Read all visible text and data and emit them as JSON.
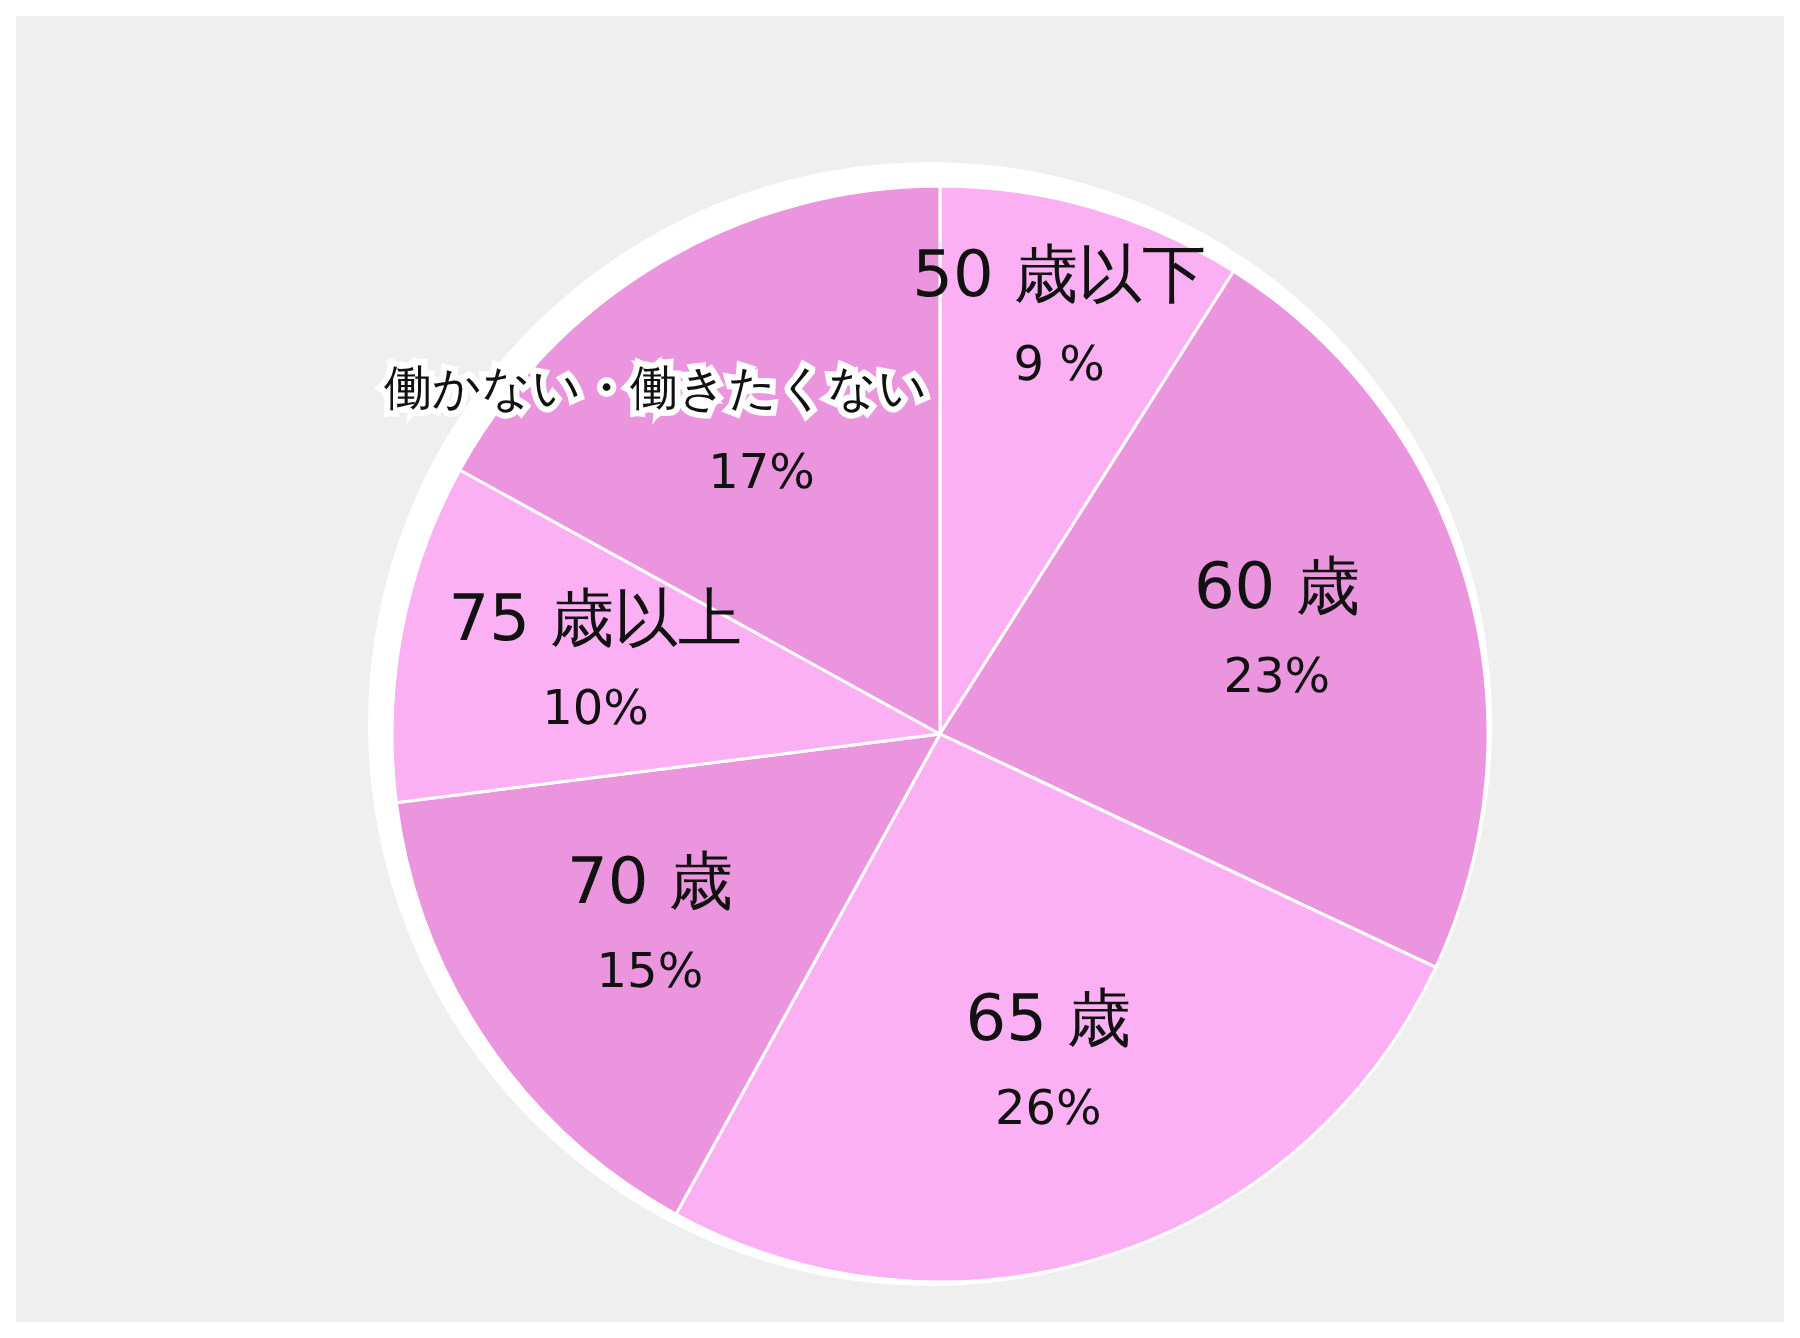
{
  "chart_data": {
    "type": "pie",
    "categories": [
      "50 歳以下",
      "60 歳",
      "65 歳",
      "70 歳",
      "75 歳以上",
      "働かない・働きたくない"
    ],
    "values": [
      9,
      23,
      26,
      15,
      10,
      17
    ],
    "value_labels": [
      "9 %",
      "23%",
      "26%",
      "15%",
      "10%",
      "17%"
    ],
    "colors": [
      "#fcb0f4",
      "#ea95dd",
      "#fcb0f4",
      "#ea95dd",
      "#fcb0f4",
      "#ea95dd"
    ]
  }
}
